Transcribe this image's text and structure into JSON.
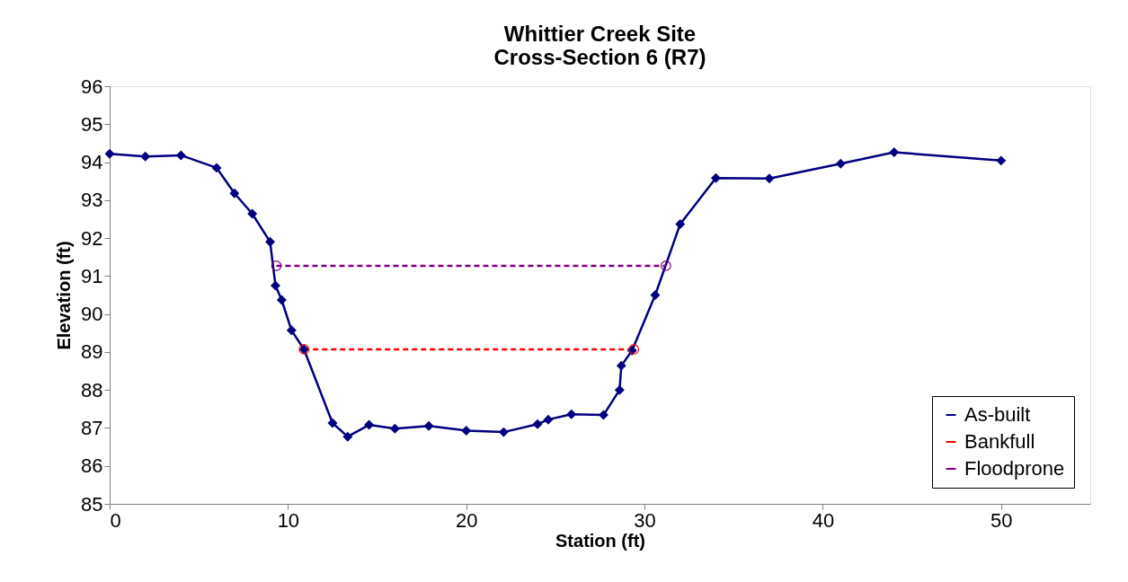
{
  "chart_data": {
    "type": "line",
    "title": "Whittier Creek Site\nCross-Section 6 (R7)",
    "xlabel": "Station (ft)",
    "ylabel": "Elevation (ft)",
    "xlim": [
      0,
      55
    ],
    "xticks": [
      0,
      10,
      20,
      30,
      40,
      50
    ],
    "ylim": [
      85,
      96
    ],
    "yticks": [
      85,
      86,
      87,
      88,
      89,
      90,
      91,
      92,
      93,
      94,
      95,
      96
    ],
    "grid": false,
    "legend": "bottom right",
    "series": [
      {
        "name": "As-built",
        "color": "#000080",
        "marker": "diamond",
        "line_style": "solid",
        "x": [
          0,
          2,
          4,
          6,
          7,
          8,
          9,
          9.3,
          9.65,
          10.2,
          10.9,
          12.5,
          13.35,
          14.55,
          16,
          17.9,
          20,
          22.1,
          24,
          24.6,
          25.9,
          27.7,
          28.6,
          28.7,
          29.3,
          30.6,
          32,
          34,
          37,
          41,
          44,
          50
        ],
        "values": [
          94.22,
          94.15,
          94.18,
          93.85,
          93.18,
          92.64,
          91.9,
          90.75,
          90.37,
          89.57,
          89.07,
          87.13,
          86.77,
          87.08,
          86.98,
          87.05,
          86.93,
          86.89,
          87.1,
          87.22,
          87.36,
          87.34,
          88.0,
          88.64,
          89.04,
          90.5,
          92.37,
          93.58,
          93.57,
          93.96,
          94.26,
          94.04
        ]
      },
      {
        "name": "Bankfull",
        "color": "#ff0000",
        "marker": "circle",
        "line_style": "dashed",
        "x": [
          10.9,
          29.4
        ],
        "values": [
          89.07,
          89.07
        ]
      },
      {
        "name": "Floodprone",
        "color": "#800080",
        "marker": "circle",
        "line_style": "dashed",
        "x": [
          9.35,
          31.2
        ],
        "values": [
          91.27,
          91.27
        ]
      }
    ]
  }
}
